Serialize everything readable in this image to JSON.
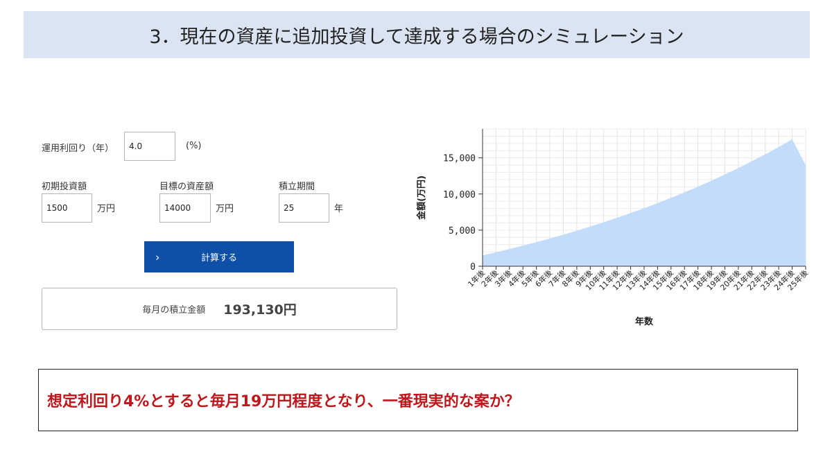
{
  "header": {
    "title": "3．現在の資産に追加投資して達成する場合のシミュレーション"
  },
  "form": {
    "rate_label": "運用利回り（年）",
    "rate_value": "4.0",
    "rate_unit": "(%)",
    "initial_label": "初期投資額",
    "initial_value": "1500",
    "initial_unit": "万円",
    "target_label": "目標の資産額",
    "target_value": "14000",
    "target_unit": "万円",
    "period_label": "積立期間",
    "period_value": "25",
    "period_unit": "年",
    "calc_button": "計算する",
    "calc_icon": "chevron-right-icon"
  },
  "result": {
    "label": "毎月の積立金額",
    "value": "193,130円"
  },
  "chart_data": {
    "type": "area",
    "xlabel": "年数",
    "ylabel": "金額(万円)",
    "ylim": [
      0,
      19000
    ],
    "yticks": [
      0,
      5000,
      10000,
      15000
    ],
    "ytick_labels": [
      "0",
      "5,000",
      "10,000",
      "15,000"
    ],
    "grid": true,
    "fill_color": "#c3dcfb",
    "categories": [
      "1年後",
      "2年後",
      "3年後",
      "4年後",
      "5年後",
      "6年後",
      "7年後",
      "8年後",
      "9年後",
      "10年後",
      "11年後",
      "12年後",
      "13年後",
      "14年後",
      "15年後",
      "16年後",
      "17年後",
      "18年後",
      "19年後",
      "20年後",
      "21年後",
      "22年後",
      "23年後",
      "24年後",
      "25年後"
    ],
    "series": [
      {
        "values": [
          1500,
          1930,
          2380,
          2850,
          3330,
          3840,
          4370,
          4920,
          5490,
          6090,
          6710,
          7360,
          8030,
          8730,
          9460,
          10220,
          11010,
          11840,
          12690,
          13590,
          14520,
          15490,
          16500,
          17550,
          14000
        ]
      }
    ]
  },
  "note": {
    "text": "想定利回り4%とすると毎月19万円程度となり、一番現実的な案か？"
  },
  "colors": {
    "header_bg": "#dbe4f3",
    "button_bg": "#0e4fa8",
    "note_text": "#c0161b"
  }
}
